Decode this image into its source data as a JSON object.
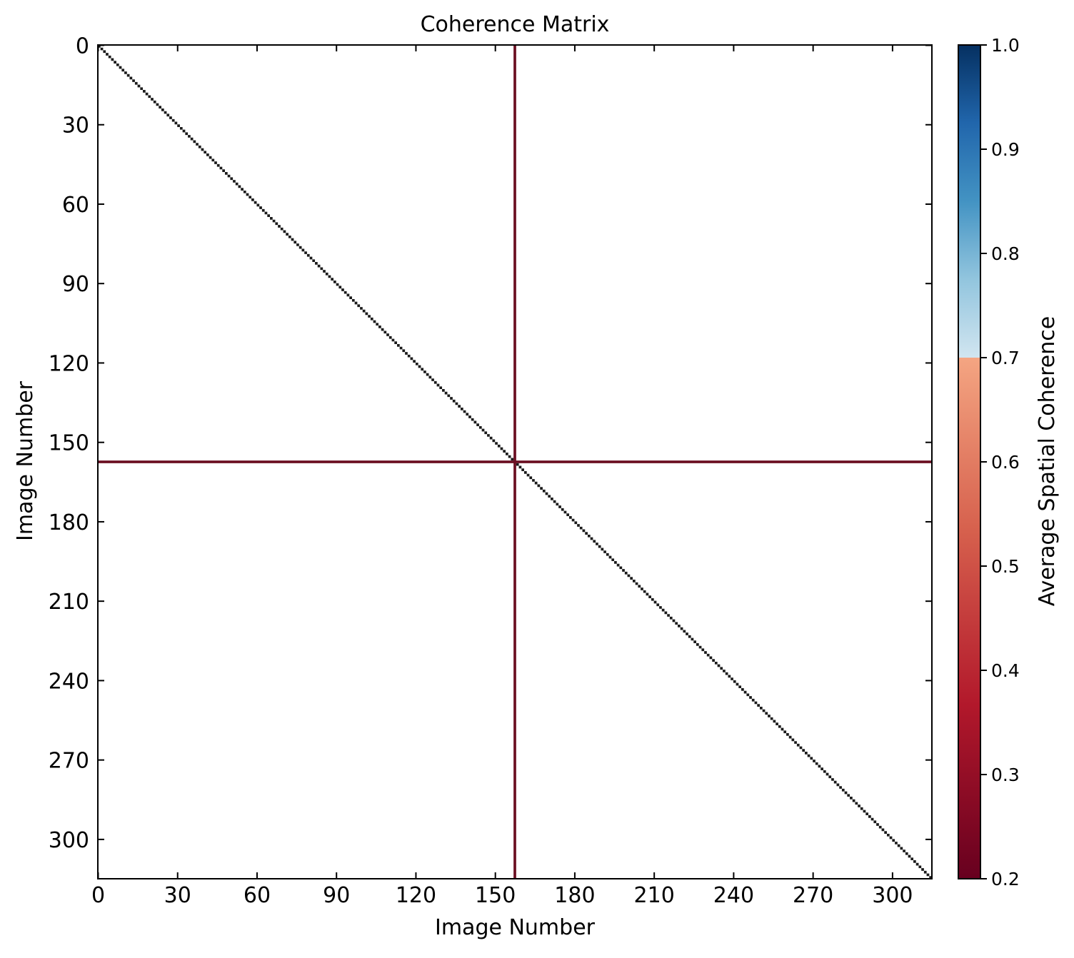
{
  "chart_data": {
    "type": "heatmap",
    "title": "Coherence Matrix",
    "xlabel": "Image Number",
    "ylabel": "Image Number",
    "n_images": 315,
    "xlim": [
      0,
      315
    ],
    "ylim": [
      0,
      315
    ],
    "y_inverted": true,
    "x_ticks": [
      0,
      30,
      60,
      90,
      120,
      150,
      180,
      210,
      240,
      270,
      300
    ],
    "y_ticks": [
      0,
      30,
      60,
      90,
      120,
      150,
      180,
      210,
      240,
      270,
      300
    ],
    "background_value": null,
    "diagonal_value": 1.0,
    "low_coherence_image": 157,
    "low_coherence_value": 0.25,
    "grid": false,
    "colorbar": {
      "label": "Average Spatial Coherence",
      "vmin": 0.2,
      "vmax": 1.0,
      "ticks": [
        "0.2",
        "0.3",
        "0.4",
        "0.5",
        "0.6",
        "0.7",
        "0.8",
        "0.9",
        "1.0"
      ],
      "threshold": 0.7,
      "colormap": "RdBu",
      "colors_low": [
        "#67001f",
        "#b2182b",
        "#d6604d",
        "#f4a582"
      ],
      "colors_high": [
        "#d1e5f0",
        "#92c5de",
        "#4393c3",
        "#2166ac",
        "#053061"
      ]
    },
    "colors": {
      "diagonal": "#1a1a1a",
      "low_line": "#6b0f22",
      "axes": "#000000"
    }
  }
}
